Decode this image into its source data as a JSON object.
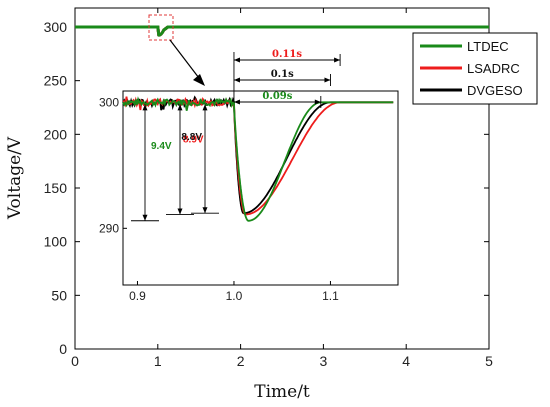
{
  "chart_data": {
    "type": "line",
    "main": {
      "xlabel": "Time/t",
      "ylabel": "Voltage/V",
      "xlim": [
        0,
        5
      ],
      "ylim": [
        0,
        300
      ],
      "xticks": [
        0,
        1,
        2,
        3,
        4,
        5
      ],
      "yticks": [
        0,
        50,
        100,
        150,
        200,
        250,
        300
      ],
      "reference_voltage": 300,
      "dip_time": 1.0
    },
    "legend": {
      "placement": "top-right",
      "entries": [
        {
          "name": "LTDEC",
          "color": "#1a8a1a"
        },
        {
          "name": "LSADRC",
          "color": "#ee1c1c"
        },
        {
          "name": "DVGESO",
          "color": "#000000"
        }
      ]
    },
    "inset": {
      "xlim": [
        0.885,
        1.17
      ],
      "ylim": [
        285.5,
        300.9
      ],
      "xticks": [
        "0.9",
        "1.0",
        "1.1"
      ],
      "yticks": [
        "290",
        "300"
      ],
      "series": [
        {
          "name": "LTDEC",
          "color": "#1a8a1a",
          "min_time": 1.015,
          "min_value": 290.6,
          "recovery_time": 1.09,
          "drop_label": "9.4V",
          "settle_label": "0.09s"
        },
        {
          "name": "LSADRC",
          "color": "#ee1c1c",
          "min_time": 1.012,
          "min_value": 291.1,
          "recovery_time": 1.11,
          "drop_label": "8.9V",
          "settle_label": "0.11s"
        },
        {
          "name": "DVGESO",
          "color": "#000000",
          "min_time": 1.01,
          "min_value": 291.2,
          "recovery_time": 1.1,
          "drop_label": "8.8V",
          "settle_label": "0.1s"
        }
      ]
    }
  }
}
